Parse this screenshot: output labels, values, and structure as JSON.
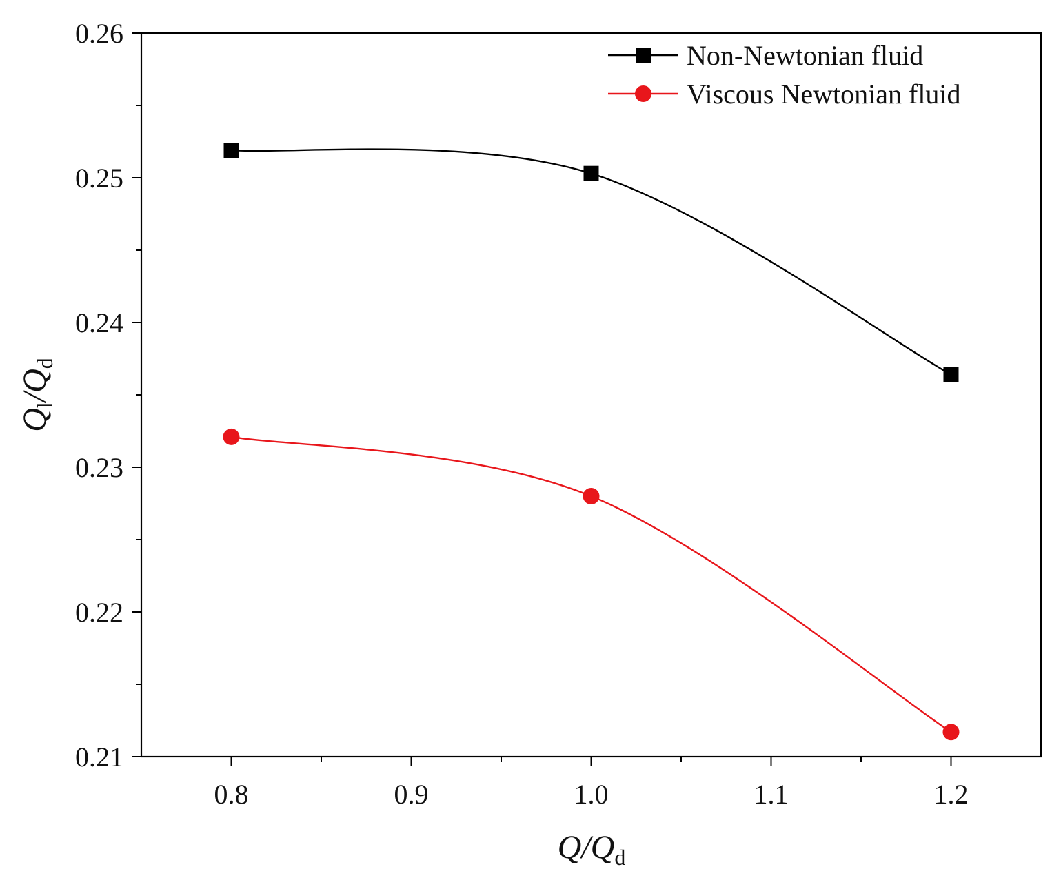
{
  "chart_data": {
    "type": "line",
    "title": "",
    "x": [
      0.8,
      1.0,
      1.2
    ],
    "xlim": [
      0.75,
      1.25
    ],
    "ylim": [
      0.21,
      0.26
    ],
    "x_ticks": [
      "0.8",
      "0.9",
      "1.0",
      "1.1",
      "1.2"
    ],
    "y_ticks": [
      "0.21",
      "0.22",
      "0.23",
      "0.24",
      "0.25",
      "0.26"
    ],
    "xlabel": {
      "main": "Q/Q",
      "sub": "d"
    },
    "ylabel": {
      "main": "Q",
      "sub1": "l",
      "mid": "/Q",
      "sub2": "d"
    },
    "grid": false,
    "legend_position": "top-right",
    "series": [
      {
        "name": "Non-Newtonian fluid",
        "values": [
          0.2519,
          0.2503,
          0.2364
        ],
        "color": "#000000",
        "marker": "square"
      },
      {
        "name": "Viscous Newtonian fluid",
        "values": [
          0.2321,
          0.228,
          0.2117
        ],
        "color": "#e8161b",
        "marker": "circle"
      }
    ]
  }
}
